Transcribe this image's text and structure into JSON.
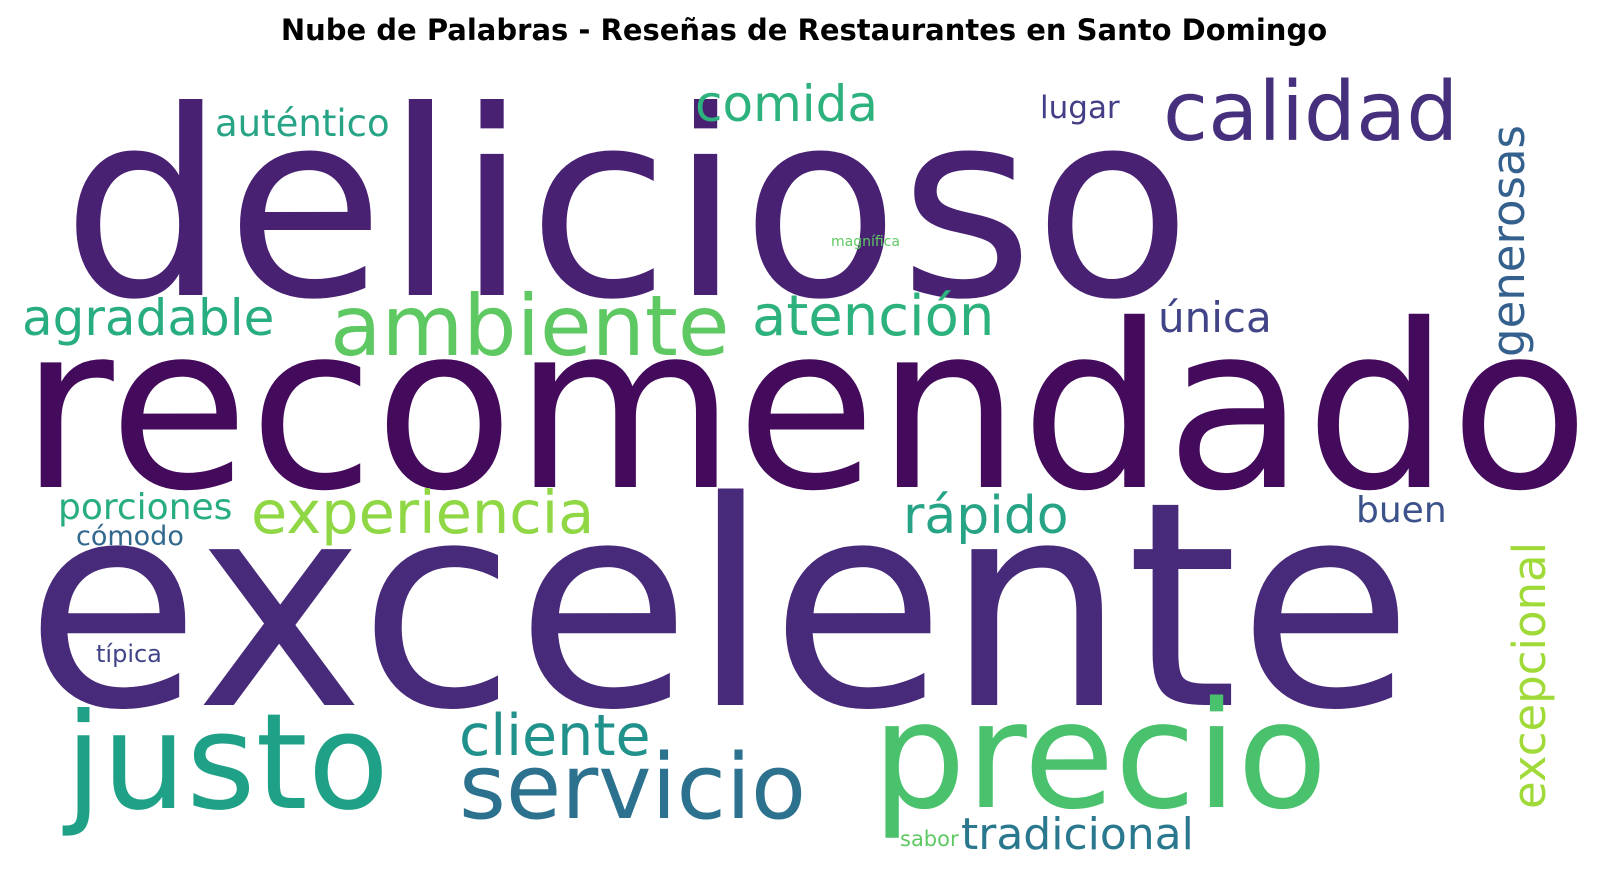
{
  "title": "Nube de Palabras - Reseñas de Restaurantes en Santo Domingo",
  "words": [
    {
      "text": "delicioso",
      "color": "#482173"
    },
    {
      "text": "recomendado",
      "color": "#440a5c"
    },
    {
      "text": "excelente",
      "color": "#472a7a"
    },
    {
      "text": "calidad",
      "color": "#46307e"
    },
    {
      "text": "comida",
      "color": "#2db27d"
    },
    {
      "text": "auténtico",
      "color": "#26a485"
    },
    {
      "text": "lugar",
      "color": "#433e85"
    },
    {
      "text": "generosas",
      "color": "#34608d"
    },
    {
      "text": "magnífica",
      "color": "#5ec962"
    },
    {
      "text": "agradable",
      "color": "#27ad81"
    },
    {
      "text": "ambiente",
      "color": "#5ec962"
    },
    {
      "text": "atención",
      "color": "#2db27d"
    },
    {
      "text": "única",
      "color": "#414487"
    },
    {
      "text": "porciones",
      "color": "#27ad81"
    },
    {
      "text": "experiencia",
      "color": "#8fd744"
    },
    {
      "text": "rápido",
      "color": "#26a485"
    },
    {
      "text": "buen",
      "color": "#3b528b"
    },
    {
      "text": "excepcional",
      "color": "#a0da39"
    },
    {
      "text": "cómodo",
      "color": "#31688e"
    },
    {
      "text": "típica",
      "color": "#414487"
    },
    {
      "text": "justo",
      "color": "#1fa187"
    },
    {
      "text": "cliente",
      "color": "#21918c"
    },
    {
      "text": "servicio",
      "color": "#2c728e"
    },
    {
      "text": "precio",
      "color": "#4ac16d"
    },
    {
      "text": "sabor",
      "color": "#5ec962"
    },
    {
      "text": "tradicional",
      "color": "#2a788e"
    }
  ]
}
